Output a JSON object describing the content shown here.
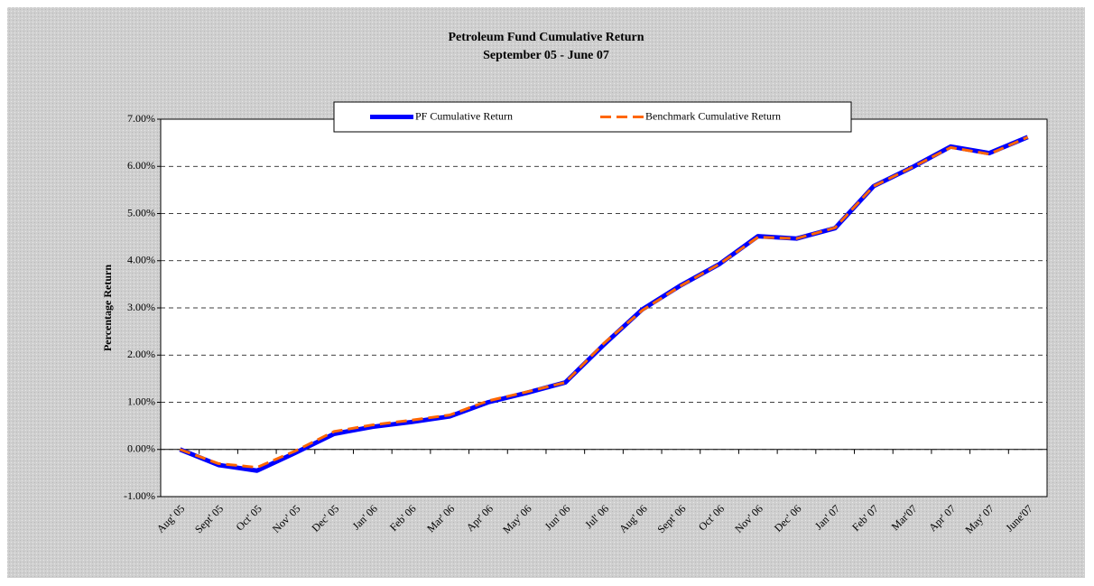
{
  "chart_data": {
    "type": "line",
    "title": "Petroleum Fund Cumulative Return",
    "subtitle": "September 05 - June 07",
    "y_label": "Percentage Return",
    "categories": [
      "Aug' 05",
      "Sept' 05",
      "Oct' 05",
      "Nov' 05",
      "Dec' 05",
      "Jan' 06",
      "Feb' 06",
      "Mar' 06",
      "Apr' 06",
      "May' 06",
      "Jun' 06",
      "Jul' 06",
      "Aug' 06",
      "Sept' 06",
      "Oct' 06",
      "Nov' 06",
      "Dec' 06",
      "Jan' 07",
      "Feb' 07",
      "Mar'07",
      "Apr' 07",
      "May' 07",
      "June'07"
    ],
    "series": [
      {
        "name": "PF Cumulative Return",
        "color": "#0000ff",
        "style": "solid",
        "values": [
          0,
          -0.33,
          -0.45,
          -0.07,
          0.33,
          0.48,
          0.58,
          0.7,
          1.0,
          1.2,
          1.42,
          2.22,
          2.97,
          3.48,
          3.93,
          4.52,
          4.47,
          4.69,
          5.58,
          5.98,
          6.42,
          6.28,
          6.62
        ]
      },
      {
        "name": "Benchmark Cumulative Return",
        "color": "#ff6600",
        "style": "dashed",
        "values": [
          0,
          -0.3,
          -0.38,
          -0.03,
          0.38,
          0.52,
          0.62,
          0.73,
          1.03,
          1.22,
          1.42,
          2.25,
          2.95,
          3.47,
          3.93,
          4.5,
          4.47,
          4.7,
          5.58,
          5.98,
          6.4,
          6.26,
          6.62
        ]
      }
    ],
    "ylim": [
      -1,
      7
    ],
    "yticks": [
      {
        "value": -1,
        "label": "-1.00%"
      },
      {
        "value": 0,
        "label": "0.00%"
      },
      {
        "value": 1,
        "label": "1.00%"
      },
      {
        "value": 2,
        "label": "2.00%"
      },
      {
        "value": 3,
        "label": "3.00%"
      },
      {
        "value": 4,
        "label": "4.00%"
      },
      {
        "value": 5,
        "label": "5.00%"
      },
      {
        "value": 6,
        "label": "6.00%"
      },
      {
        "value": 7,
        "label": "7.00%"
      }
    ],
    "grid": true,
    "legend": "top"
  }
}
